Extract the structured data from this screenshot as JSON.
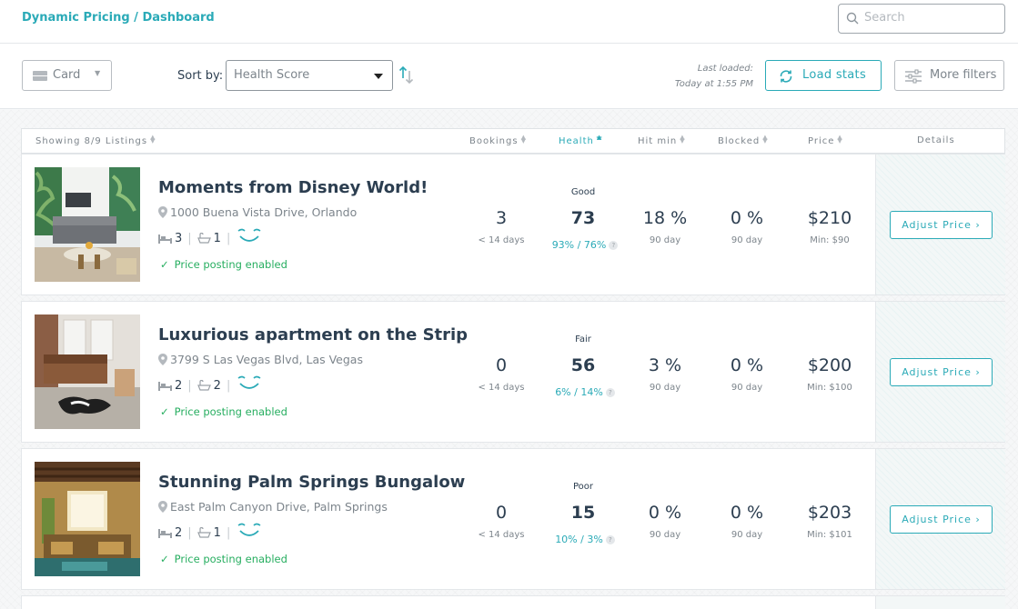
{
  "breadcrumb": "Dynamic Pricing / Dashboard",
  "search": {
    "placeholder": "Search"
  },
  "toolbar": {
    "view_select": "Card",
    "sort_label": "Sort by:",
    "sort_value": "Health Score",
    "last_loaded_line1": "Last loaded:",
    "last_loaded_line2": "Today at 1:55 PM",
    "load_stats": "Load stats",
    "more_filters": "More filters"
  },
  "columns": {
    "showing": "Showing 8/9 Listings",
    "bookings": "Bookings",
    "health": "Health",
    "hit_min": "Hit min",
    "blocked": "Blocked",
    "price": "Price",
    "details": "Details"
  },
  "colors": {
    "accent": "#2aaab7",
    "success": "#27ae60",
    "text": "#2c3e50",
    "muted": "#7d858c"
  },
  "listings": [
    {
      "title": "Moments from Disney World!",
      "address": "1000 Buena Vista Drive, Orlando",
      "beds": "3",
      "baths": "1",
      "posting": "Price posting enabled",
      "bookings": "3",
      "bookings_sub": "< 14 days",
      "health_tag": "Good",
      "health_score": "73",
      "health_sub": "93% / 76%",
      "hit_min": "18 %",
      "hit_min_sub": "90 day",
      "blocked": "0 %",
      "blocked_sub": "90 day",
      "price": "$210",
      "price_min": "Min: $90",
      "action": "Adjust Price"
    },
    {
      "title": "Luxurious apartment on the Strip",
      "address": "3799 S Las Vegas Blvd, Las Vegas",
      "beds": "2",
      "baths": "2",
      "posting": "Price posting enabled",
      "bookings": "0",
      "bookings_sub": "< 14 days",
      "health_tag": "Fair",
      "health_score": "56",
      "health_sub": "6% / 14%",
      "hit_min": "3 %",
      "hit_min_sub": "90 day",
      "blocked": "0 %",
      "blocked_sub": "90 day",
      "price": "$200",
      "price_min": "Min: $100",
      "action": "Adjust Price"
    },
    {
      "title": "Stunning Palm Springs Bungalow",
      "address": "East Palm Canyon Drive, Palm Springs",
      "beds": "2",
      "baths": "1",
      "posting": "Price posting enabled",
      "bookings": "0",
      "bookings_sub": "< 14 days",
      "health_tag": "Poor",
      "health_score": "15",
      "health_sub": "10% / 3%",
      "hit_min": "0 %",
      "hit_min_sub": "90 day",
      "blocked": "0 %",
      "blocked_sub": "90 day",
      "price": "$203",
      "price_min": "Min: $101",
      "action": "Adjust Price"
    }
  ]
}
